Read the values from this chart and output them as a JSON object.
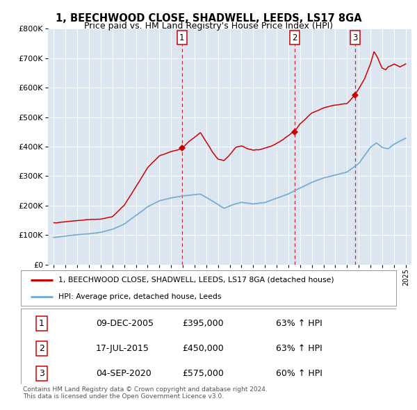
{
  "title": "1, BEECHWOOD CLOSE, SHADWELL, LEEDS, LS17 8GA",
  "subtitle": "Price paid vs. HM Land Registry's House Price Index (HPI)",
  "background_color": "#dce6f1",
  "sale_dates": [
    "09-DEC-2005",
    "17-JUL-2015",
    "04-SEP-2020"
  ],
  "sale_prices": [
    395000,
    450000,
    575000
  ],
  "sale_hpi_pct": [
    "63% ↑ HPI",
    "63% ↑ HPI",
    "60% ↑ HPI"
  ],
  "sale_years": [
    2005.92,
    2015.54,
    2020.67
  ],
  "legend_property": "1, BEECHWOOD CLOSE, SHADWELL, LEEDS, LS17 8GA (detached house)",
  "legend_hpi": "HPI: Average price, detached house, Leeds",
  "footnote1": "Contains HM Land Registry data © Crown copyright and database right 2024.",
  "footnote2": "This data is licensed under the Open Government Licence v3.0.",
  "red_color": "#cc0000",
  "blue_color": "#7aadcf",
  "ylim_max": 800000,
  "xlim": [
    1994.5,
    2025.5
  ]
}
